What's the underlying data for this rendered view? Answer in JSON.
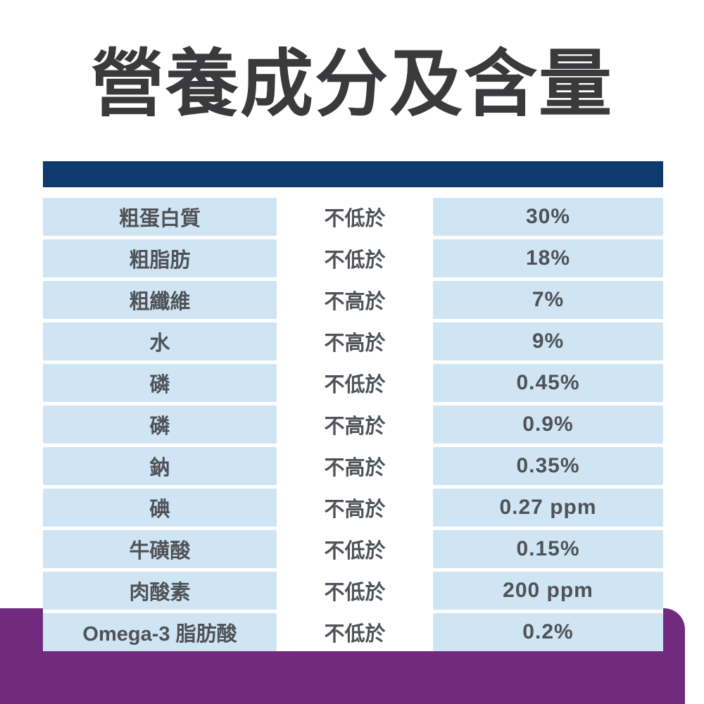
{
  "page": {
    "title": "營養成分及含量",
    "colors": {
      "background": "#ffffff",
      "navy": "#0e3a6d",
      "light_blue": "#cfe5f3",
      "purple": "#722a7e",
      "title_text": "#3a3a3c",
      "table_text": "#4f5257"
    }
  },
  "table": {
    "rows": [
      {
        "nutrient": "粗蛋白質",
        "condition": "不低於",
        "value": "30%"
      },
      {
        "nutrient": "粗脂肪",
        "condition": "不低於",
        "value": "18%"
      },
      {
        "nutrient": "粗纖維",
        "condition": "不高於",
        "value": "7%"
      },
      {
        "nutrient": "水",
        "condition": "不高於",
        "value": "9%"
      },
      {
        "nutrient": "磷",
        "condition": "不低於",
        "value": "0.45%"
      },
      {
        "nutrient": "磷",
        "condition": "不高於",
        "value": "0.9%"
      },
      {
        "nutrient": "鈉",
        "condition": "不高於",
        "value": "0.35%"
      },
      {
        "nutrient": "碘",
        "condition": "不高於",
        "value": "0.27 ppm"
      },
      {
        "nutrient": "牛磺酸",
        "condition": "不低於",
        "value": "0.15%"
      },
      {
        "nutrient": "肉酸素",
        "condition": "不低於",
        "value": "200 ppm"
      },
      {
        "nutrient": "Omega-3 脂肪酸",
        "condition": "不低於",
        "value": "0.2%"
      }
    ]
  }
}
